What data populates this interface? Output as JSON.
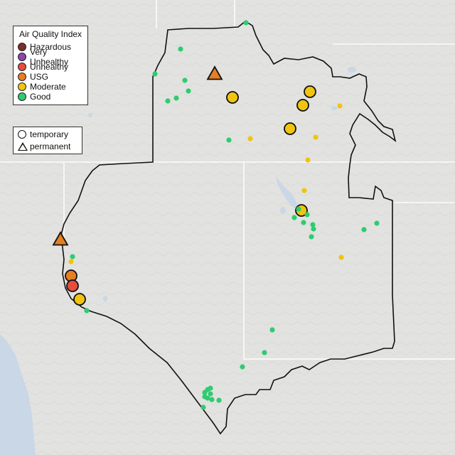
{
  "legend": {
    "title": "Air Quality Index",
    "categories": [
      {
        "label": "Hazardous",
        "color": "#7a2e2e"
      },
      {
        "label": "Very Unhealthy",
        "color": "#8e44ad"
      },
      {
        "label": "Unhealthy",
        "color": "#e74c3c"
      },
      {
        "label": "USG",
        "color": "#e67e22"
      },
      {
        "label": "Moderate",
        "color": "#f1c40f"
      },
      {
        "label": "Good",
        "color": "#2ecc71"
      }
    ]
  },
  "monitor_legend": {
    "temporary": "temporary",
    "permanent": "permanent"
  },
  "colors": {
    "land": "#e2e2e0",
    "water": "#c9d7e6",
    "boundary": "#111111",
    "state_line": "#ffffff"
  },
  "markers": [
    {
      "kind": "permanent",
      "aqi": "USG"
    },
    {
      "kind": "permanent",
      "aqi": "USG"
    },
    {
      "kind": "temporary",
      "aqi": "Moderate"
    },
    {
      "kind": "temporary",
      "aqi": "Moderate"
    },
    {
      "kind": "temporary",
      "aqi": "Moderate"
    },
    {
      "kind": "temporary",
      "aqi": "Moderate"
    },
    {
      "kind": "temporary",
      "aqi": "Moderate"
    },
    {
      "kind": "temporary",
      "aqi": "USG"
    },
    {
      "kind": "temporary",
      "aqi": "Unhealthy"
    },
    {
      "kind": "temporary",
      "aqi": "Moderate"
    },
    {
      "kind": "point",
      "aqi": "Moderate"
    },
    {
      "kind": "point",
      "aqi": "Moderate"
    },
    {
      "kind": "point",
      "aqi": "Moderate"
    },
    {
      "kind": "point",
      "aqi": "Moderate"
    },
    {
      "kind": "point",
      "aqi": "Moderate"
    },
    {
      "kind": "point",
      "aqi": "Moderate"
    },
    {
      "kind": "point",
      "aqi": "Moderate"
    },
    {
      "kind": "point",
      "aqi": "Good"
    },
    {
      "kind": "point",
      "aqi": "Good"
    },
    {
      "kind": "point",
      "aqi": "Good"
    },
    {
      "kind": "point",
      "aqi": "Good"
    },
    {
      "kind": "point",
      "aqi": "Good"
    },
    {
      "kind": "point",
      "aqi": "Good"
    },
    {
      "kind": "point",
      "aqi": "Good"
    },
    {
      "kind": "point",
      "aqi": "Good"
    },
    {
      "kind": "point",
      "aqi": "Good"
    },
    {
      "kind": "point",
      "aqi": "Good"
    },
    {
      "kind": "point",
      "aqi": "Good"
    },
    {
      "kind": "point",
      "aqi": "Good"
    },
    {
      "kind": "point",
      "aqi": "Good"
    },
    {
      "kind": "point",
      "aqi": "Good"
    },
    {
      "kind": "point",
      "aqi": "Good"
    },
    {
      "kind": "point",
      "aqi": "Good"
    },
    {
      "kind": "point",
      "aqi": "Good"
    },
    {
      "kind": "point",
      "aqi": "Good"
    },
    {
      "kind": "point",
      "aqi": "Good"
    },
    {
      "kind": "point",
      "aqi": "Good"
    },
    {
      "kind": "point",
      "aqi": "Good"
    },
    {
      "kind": "point",
      "aqi": "Good"
    },
    {
      "kind": "point",
      "aqi": "Good"
    },
    {
      "kind": "point",
      "aqi": "Good"
    },
    {
      "kind": "point",
      "aqi": "Good"
    },
    {
      "kind": "point",
      "aqi": "Good"
    },
    {
      "kind": "point",
      "aqi": "Good"
    },
    {
      "kind": "point",
      "aqi": "Good"
    },
    {
      "kind": "point",
      "aqi": "Good"
    },
    {
      "kind": "point",
      "aqi": "Good"
    },
    {
      "kind": "point",
      "aqi": "Good"
    }
  ]
}
